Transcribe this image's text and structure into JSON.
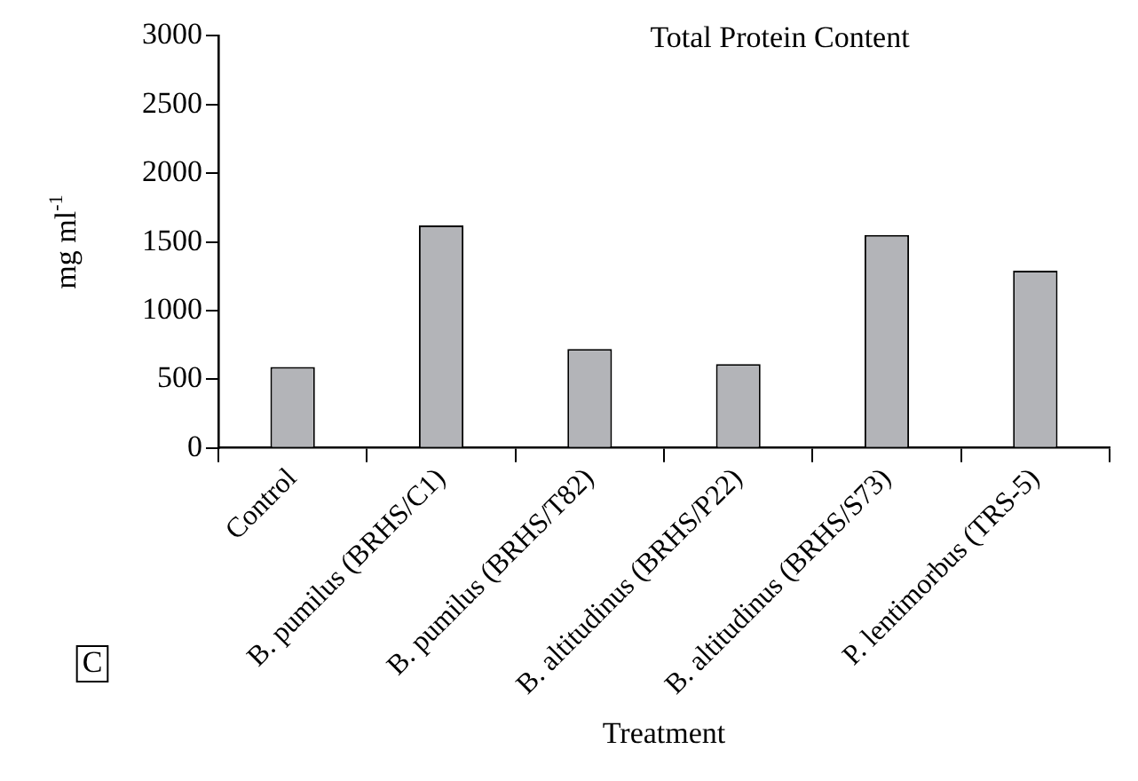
{
  "chart_data": {
    "type": "bar",
    "title": "Total Protein Content",
    "xlabel": "Treatment",
    "ylabel": "mg ml$^{-1}$",
    "categories": [
      "Control",
      "B. pumilus (BRHS/C1)",
      "B. pumilus (BRHS/T82)",
      "B. altitudinus (BRHS/P22)",
      "B. altitudinus (BRHS/S73)",
      "P. lentimorbus (TRS-5)"
    ],
    "values": [
      590,
      1620,
      720,
      610,
      1550,
      1290
    ],
    "color": "#b3b4b8",
    "ylim": [
      0,
      3000
    ],
    "yticks": [
      0,
      500,
      1000,
      1500,
      2000,
      2500,
      3000
    ],
    "grid": false,
    "legend": false,
    "annotations": [
      "C"
    ]
  }
}
